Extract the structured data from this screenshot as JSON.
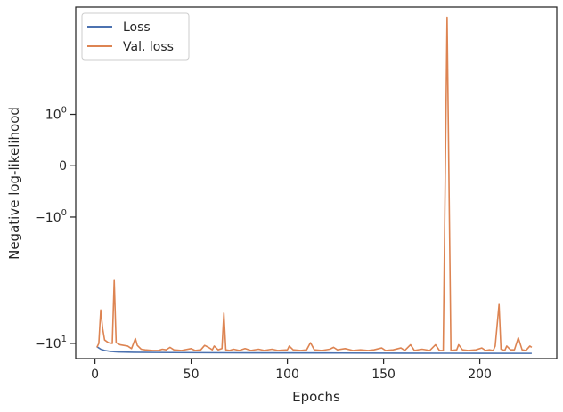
{
  "chart_data": {
    "type": "line",
    "title": "",
    "xlabel": "Epochs",
    "ylabel": "Negative log-likelihood",
    "xlim": [
      -10,
      240
    ],
    "yscale": "symlog",
    "ylim": [
      -12.5,
      7.5
    ],
    "xticks": [
      0,
      50,
      100,
      150,
      200
    ],
    "xtick_labels": [
      "0",
      "50",
      "100",
      "150",
      "200"
    ],
    "yticks": [
      -10,
      -1,
      0,
      1
    ],
    "ytick_labels": [
      {
        "base": "−10",
        "exp": "1"
      },
      {
        "base": "−10",
        "exp": "0"
      },
      {
        "base": "0",
        "exp": ""
      },
      {
        "base": "10",
        "exp": "0"
      }
    ],
    "grid": false,
    "legend_position": "top-left",
    "series": [
      {
        "name": "Loss",
        "color": "#4c72b0",
        "points": [
          [
            1,
            -10.5
          ],
          [
            2,
            -10.7
          ],
          [
            3,
            -10.9
          ],
          [
            5,
            -11.1
          ],
          [
            8,
            -11.25
          ],
          [
            12,
            -11.35
          ],
          [
            20,
            -11.4
          ],
          [
            40,
            -11.45
          ],
          [
            80,
            -11.5
          ],
          [
            120,
            -11.52
          ],
          [
            160,
            -11.55
          ],
          [
            200,
            -11.57
          ],
          [
            227,
            -11.58
          ]
        ]
      },
      {
        "name": "Val. loss",
        "color": "#dd8452",
        "points": [
          [
            1,
            -10.6
          ],
          [
            2,
            -10
          ],
          [
            3,
            -6
          ],
          [
            4,
            -8
          ],
          [
            5,
            -9.5
          ],
          [
            7,
            -9.9
          ],
          [
            9,
            -10
          ],
          [
            10,
            -3.7
          ],
          [
            11,
            -9.9
          ],
          [
            13,
            -10.2
          ],
          [
            15,
            -10.3
          ],
          [
            17,
            -10.4
          ],
          [
            19,
            -10.8
          ],
          [
            21,
            -9.3
          ],
          [
            22,
            -10.3
          ],
          [
            24,
            -10.9
          ],
          [
            26,
            -11
          ],
          [
            30,
            -11.1
          ],
          [
            33,
            -11.1
          ],
          [
            35,
            -10.9
          ],
          [
            37,
            -11
          ],
          [
            39,
            -10.6
          ],
          [
            41,
            -11
          ],
          [
            45,
            -11.1
          ],
          [
            50,
            -10.8
          ],
          [
            52,
            -11.1
          ],
          [
            55,
            -11
          ],
          [
            57,
            -10.3
          ],
          [
            59,
            -10.6
          ],
          [
            61,
            -11
          ],
          [
            62,
            -10.4
          ],
          [
            64,
            -11
          ],
          [
            66,
            -10.8
          ],
          [
            67,
            -6.3
          ],
          [
            68,
            -11
          ],
          [
            70,
            -11.1
          ],
          [
            72,
            -10.9
          ],
          [
            75,
            -11.1
          ],
          [
            78,
            -10.8
          ],
          [
            81,
            -11.1
          ],
          [
            85,
            -10.9
          ],
          [
            88,
            -11.1
          ],
          [
            92,
            -10.9
          ],
          [
            95,
            -11.1
          ],
          [
            100,
            -11
          ],
          [
            101,
            -10.4
          ],
          [
            103,
            -11
          ],
          [
            107,
            -11.1
          ],
          [
            110,
            -11
          ],
          [
            112,
            -9.9
          ],
          [
            114,
            -11
          ],
          [
            118,
            -11.1
          ],
          [
            122,
            -10.9
          ],
          [
            124,
            -10.6
          ],
          [
            126,
            -11
          ],
          [
            130,
            -10.8
          ],
          [
            134,
            -11.1
          ],
          [
            138,
            -11
          ],
          [
            142,
            -11.1
          ],
          [
            145,
            -11
          ],
          [
            149,
            -10.7
          ],
          [
            151,
            -11.1
          ],
          [
            155,
            -11
          ],
          [
            159,
            -10.7
          ],
          [
            161,
            -11.1
          ],
          [
            164,
            -10.2
          ],
          [
            166,
            -11.1
          ],
          [
            170,
            -10.9
          ],
          [
            174,
            -11.1
          ],
          [
            177,
            -10.2
          ],
          [
            179,
            -11.1
          ],
          [
            181,
            -11.1
          ],
          [
            183,
            6.4
          ],
          [
            185,
            -11.1
          ],
          [
            188,
            -11
          ],
          [
            189,
            -10.2
          ],
          [
            191,
            -11
          ],
          [
            194,
            -11.1
          ],
          [
            198,
            -11
          ],
          [
            201,
            -10.7
          ],
          [
            203,
            -11.1
          ],
          [
            205,
            -11
          ],
          [
            207,
            -11.1
          ],
          [
            208,
            -10.4
          ],
          [
            210,
            -5.5
          ],
          [
            211,
            -10.9
          ],
          [
            213,
            -11.1
          ],
          [
            214,
            -10.4
          ],
          [
            216,
            -11
          ],
          [
            218,
            -11
          ],
          [
            220,
            -9.2
          ],
          [
            222,
            -11
          ],
          [
            224,
            -11.1
          ],
          [
            226,
            -10.4
          ],
          [
            227,
            -10.6
          ]
        ]
      }
    ]
  }
}
